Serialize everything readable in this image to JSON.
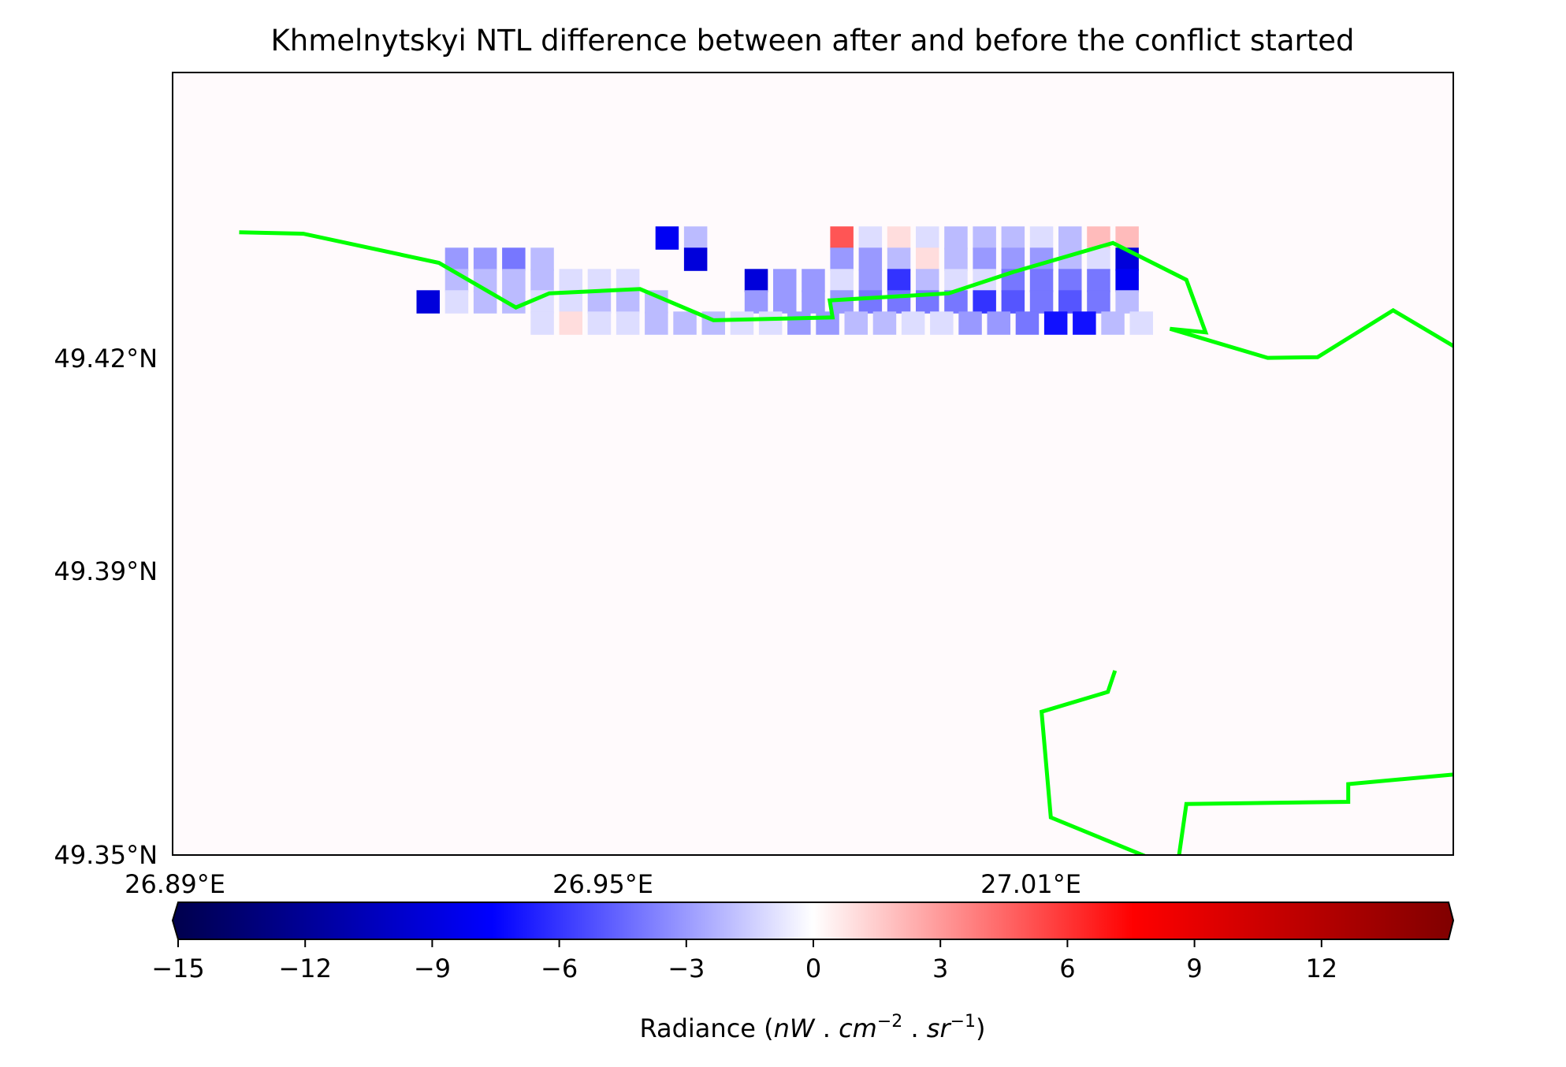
{
  "chart_data": {
    "type": "heatmap",
    "title": "Khmelnytskyi NTL difference between after and before the conflict started",
    "x_extent": [
      26.888,
      26.998
    ],
    "y_extent": [
      49.35,
      49.4385
    ],
    "x_ticks": [
      {
        "value": 26.89,
        "label": "26.89°E"
      },
      {
        "value": 26.95,
        "label": "26.95°E"
      },
      {
        "value": 27.01,
        "label": "27.01°E"
      }
    ],
    "y_ticks": [
      {
        "value": 49.42,
        "label": "49.42°N"
      },
      {
        "value": 49.39,
        "label": "49.39°N"
      },
      {
        "value": 49.35,
        "label": "49.35°N"
      }
    ],
    "grid": false,
    "raster": {
      "note_legend": "row-major, top to bottom, 43 columns x 26 rows",
      "cols": 43,
      "rows": 26,
      "legend": {
        ".": 0,
        "a": -1,
        "b": -2,
        "c": -3,
        "d": -4,
        "e": -5,
        "f": -6,
        "g": -8,
        "h": -10,
        "i": -14,
        "r": 2,
        "s": 4,
        "t": 6,
        "u": 8,
        "v": 10
      },
      "data": [
        "..................................",
        ".....................e.b.........t.rac..a.....",
        "......cbddc............f.........dcbcc.....f",
        "......bdcbbaa.....................bcaadcbacbaabde",
        "......e.bc...b........bbb.........eeddccbbcbdcbbca",
        "........a.rb.aaaa.......cddccceddbcbbbec",
        "...........fbbbcbcab.....e.bcdbbcbdcbbva.ba..",
        "...........fbbbbbbaa.....cdebfffdcf.bb.b....e",
        "...........................feeccce.........fa",
        "...........ffcgcdcbcdffffdeeeeccdcdbbbcabbbbb",
        "...........ddccd.r....cbdadcddbbbbbbbbbbbb..b",
        "........b.cbdccbbaa....dbcccccdddeccbaaab..",
        "..........bebdccbbbcbbccdcddddeeecbbb......",
        "............bcfcccbbbcdefffdeeeggg.ddccc...",
        "..........aarr.bbccbbbbccddddeeeffgggd....",
        ".......rr.abdbbcbbabcdcdcbbcddeeefaaaeab.......",
        ".......aeeadba.........................f.a",
        "..........................................",
        "..........................................",
        ".........................................",
        "..........................................",
        "..........................................",
        "..........................................",
        "..........................................",
        "..........................................",
        ".........................................."
      ]
    },
    "grid_cells": [
      {
        "lon": 26.959,
        "lat": 49.437,
        "v": -8
      },
      {
        "lon": 26.963,
        "lat": 49.437,
        "v": -2
      },
      {
        "lon": 26.963,
        "lat": 49.434,
        "v": -9
      },
      {
        "lon": 26.9835,
        "lat": 49.437,
        "v": 5
      },
      {
        "lon": 26.9875,
        "lat": 49.437,
        "v": -1
      },
      {
        "lon": 26.9915,
        "lat": 49.437,
        "v": 1
      },
      {
        "lon": 26.9955,
        "lat": 49.437,
        "v": -1
      },
      {
        "lon": 26.9995,
        "lat": 49.437,
        "v": -2
      },
      {
        "lon": 27.0035,
        "lat": 49.437,
        "v": -2
      },
      {
        "lon": 27.0075,
        "lat": 49.437,
        "v": -2
      },
      {
        "lon": 27.0115,
        "lat": 49.437,
        "v": -1
      },
      {
        "lon": 27.0155,
        "lat": 49.437,
        "v": -2
      },
      {
        "lon": 27.0195,
        "lat": 49.437,
        "v": 2
      },
      {
        "lon": 27.0235,
        "lat": 49.437,
        "v": 2
      },
      {
        "lon": 26.9295,
        "lat": 49.434,
        "v": -3
      },
      {
        "lon": 26.9335,
        "lat": 49.434,
        "v": -3
      },
      {
        "lon": 26.9375,
        "lat": 49.434,
        "v": -4
      },
      {
        "lon": 26.9415,
        "lat": 49.434,
        "v": -2
      },
      {
        "lon": 26.9835,
        "lat": 49.434,
        "v": -3
      },
      {
        "lon": 26.9875,
        "lat": 49.434,
        "v": -3
      },
      {
        "lon": 26.9915,
        "lat": 49.434,
        "v": -2
      },
      {
        "lon": 26.9955,
        "lat": 49.434,
        "v": 1
      },
      {
        "lon": 26.9995,
        "lat": 49.434,
        "v": -2
      },
      {
        "lon": 27.0035,
        "lat": 49.434,
        "v": -3
      },
      {
        "lon": 27.0075,
        "lat": 49.434,
        "v": -3
      },
      {
        "lon": 27.0115,
        "lat": 49.434,
        "v": -3
      },
      {
        "lon": 27.0155,
        "lat": 49.434,
        "v": -2
      },
      {
        "lon": 27.0195,
        "lat": 49.434,
        "v": -1
      },
      {
        "lon": 27.0235,
        "lat": 49.434,
        "v": -9
      },
      {
        "lon": 26.9295,
        "lat": 49.431,
        "v": -2
      },
      {
        "lon": 26.9335,
        "lat": 49.431,
        "v": -2
      },
      {
        "lon": 26.9375,
        "lat": 49.431,
        "v": -2
      },
      {
        "lon": 26.9415,
        "lat": 49.431,
        "v": -2
      },
      {
        "lon": 26.9455,
        "lat": 49.431,
        "v": -1
      },
      {
        "lon": 26.9495,
        "lat": 49.431,
        "v": -1
      },
      {
        "lon": 26.9535,
        "lat": 49.431,
        "v": -1
      },
      {
        "lon": 26.9715,
        "lat": 49.431,
        "v": -9
      },
      {
        "lon": 26.9755,
        "lat": 49.431,
        "v": -3
      },
      {
        "lon": 26.9795,
        "lat": 49.431,
        "v": -3
      },
      {
        "lon": 26.9835,
        "lat": 49.431,
        "v": -1
      },
      {
        "lon": 26.9875,
        "lat": 49.431,
        "v": -3
      },
      {
        "lon": 26.9915,
        "lat": 49.431,
        "v": -6
      },
      {
        "lon": 26.9955,
        "lat": 49.431,
        "v": -2
      },
      {
        "lon": 26.9995,
        "lat": 49.431,
        "v": -1
      },
      {
        "lon": 27.0035,
        "lat": 49.431,
        "v": -1
      },
      {
        "lon": 27.0075,
        "lat": 49.431,
        "v": -4
      },
      {
        "lon": 27.0115,
        "lat": 49.431,
        "v": -4
      },
      {
        "lon": 27.0155,
        "lat": 49.431,
        "v": -4
      },
      {
        "lon": 27.0195,
        "lat": 49.431,
        "v": -4
      },
      {
        "lon": 27.0235,
        "lat": 49.431,
        "v": -8
      },
      {
        "lon": 26.9255,
        "lat": 49.428,
        "v": -9
      },
      {
        "lon": 26.9295,
        "lat": 49.428,
        "v": -1
      },
      {
        "lon": 26.9335,
        "lat": 49.428,
        "v": -2
      },
      {
        "lon": 26.9375,
        "lat": 49.428,
        "v": -2
      },
      {
        "lon": 26.9415,
        "lat": 49.428,
        "v": -1
      },
      {
        "lon": 26.9455,
        "lat": 49.428,
        "v": -1
      },
      {
        "lon": 26.9495,
        "lat": 49.428,
        "v": -2
      },
      {
        "lon": 26.9535,
        "lat": 49.428,
        "v": -2
      },
      {
        "lon": 26.9575,
        "lat": 49.428,
        "v": -2
      },
      {
        "lon": 26.9715,
        "lat": 49.428,
        "v": -3
      },
      {
        "lon": 26.9755,
        "lat": 49.428,
        "v": -3
      },
      {
        "lon": 26.9795,
        "lat": 49.428,
        "v": -3
      },
      {
        "lon": 26.9835,
        "lat": 49.428,
        "v": -3
      },
      {
        "lon": 26.9875,
        "lat": 49.428,
        "v": -4
      },
      {
        "lon": 26.9915,
        "lat": 49.428,
        "v": -4
      },
      {
        "lon": 26.9955,
        "lat": 49.428,
        "v": -4
      },
      {
        "lon": 26.9995,
        "lat": 49.428,
        "v": -4
      },
      {
        "lon": 27.0035,
        "lat": 49.428,
        "v": -6
      },
      {
        "lon": 27.0075,
        "lat": 49.428,
        "v": -5
      },
      {
        "lon": 27.0115,
        "lat": 49.428,
        "v": -4
      },
      {
        "lon": 27.0155,
        "lat": 49.428,
        "v": -5
      },
      {
        "lon": 27.0195,
        "lat": 49.428,
        "v": -4
      },
      {
        "lon": 27.0235,
        "lat": 49.428,
        "v": -2
      },
      {
        "lon": 26.9415,
        "lat": 49.425,
        "v": -1
      },
      {
        "lon": 26.9455,
        "lat": 49.425,
        "v": 1
      },
      {
        "lon": 26.9495,
        "lat": 49.425,
        "v": -1
      },
      {
        "lon": 26.9535,
        "lat": 49.425,
        "v": -1
      },
      {
        "lon": 26.9575,
        "lat": 49.425,
        "v": -2
      },
      {
        "lon": 26.9615,
        "lat": 49.425,
        "v": -2
      },
      {
        "lon": 26.9655,
        "lat": 49.425,
        "v": -2
      },
      {
        "lon": 26.9695,
        "lat": 49.425,
        "v": -1
      },
      {
        "lon": 26.9735,
        "lat": 49.425,
        "v": -1
      },
      {
        "lon": 26.9775,
        "lat": 49.425,
        "v": -3
      },
      {
        "lon": 26.9815,
        "lat": 49.425,
        "v": -3
      },
      {
        "lon": 26.9855,
        "lat": 49.425,
        "v": -2
      },
      {
        "lon": 26.9895,
        "lat": 49.425,
        "v": -2
      },
      {
        "lon": 26.9935,
        "lat": 49.425,
        "v": -1
      },
      {
        "lon": 26.9975,
        "lat": 49.425,
        "v": -1
      },
      {
        "lon": 27.0015,
        "lat": 49.425,
        "v": -3
      },
      {
        "lon": 27.0055,
        "lat": 49.425,
        "v": -3
      },
      {
        "lon": 27.0095,
        "lat": 49.425,
        "v": -4
      },
      {
        "lon": 27.0135,
        "lat": 49.425,
        "v": -7
      },
      {
        "lon": 27.0175,
        "lat": 49.425,
        "v": -7
      },
      {
        "lon": 27.0215,
        "lat": 49.425,
        "v": -2
      },
      {
        "lon": 27.0255,
        "lat": 49.425,
        "v": -1
      }
    ],
    "boundary": [
      [
        26.899,
        49.4378
      ],
      [
        26.908,
        49.4376
      ],
      [
        26.927,
        49.4335
      ],
      [
        26.9378,
        49.4272
      ],
      [
        26.9425,
        49.4292
      ],
      [
        26.9552,
        49.4298
      ],
      [
        26.9655,
        49.4254
      ],
      [
        26.9822,
        49.4258
      ],
      [
        26.9818,
        49.4282
      ],
      [
        26.9985,
        49.4292
      ],
      [
        27.0075,
        49.4322
      ],
      [
        27.0215,
        49.4363
      ],
      [
        27.0318,
        49.4311
      ],
      [
        27.0345,
        49.4237
      ],
      [
        27.0295,
        49.4242
      ],
      [
        27.0432,
        49.4201
      ],
      [
        27.0502,
        49.4202
      ],
      [
        27.0608,
        49.4268
      ],
      [
        27.0702,
        49.4212
      ],
      [
        27.0715,
        49.4125
      ],
      [
        27.0735,
        49.4075
      ],
      [
        27.0782,
        49.3978
      ],
      [
        27.0782,
        49.4064
      ],
      [
        27.0818,
        49.4043
      ],
      [
        27.0818,
        49.3928
      ],
      [
        27.0875,
        49.3897
      ],
      [
        27.0905,
        49.3812
      ],
      [
        27.0945,
        49.3765
      ],
      [
        27.0945,
        49.3745
      ],
      [
        27.0885,
        49.37
      ],
      [
        27.0832,
        49.3681
      ],
      [
        27.0742,
        49.3618
      ],
      [
        27.0545,
        49.36
      ],
      [
        27.0545,
        49.3575
      ],
      [
        27.0318,
        49.3572
      ],
      [
        27.0305,
        49.348
      ],
      [
        27.0128,
        49.3553
      ],
      [
        27.0115,
        49.3702
      ],
      [
        27.0208,
        49.373
      ],
      [
        27.0218,
        49.376
      ]
    ]
  },
  "colorbar": {
    "ticks": [
      {
        "value": -15,
        "label": "−15"
      },
      {
        "value": -12,
        "label": "−12"
      },
      {
        "value": -9,
        "label": "−9"
      },
      {
        "value": -6,
        "label": "−6"
      },
      {
        "value": -3,
        "label": "−3"
      },
      {
        "value": 0,
        "label": "0"
      },
      {
        "value": 3,
        "label": "3"
      },
      {
        "value": 6,
        "label": "6"
      },
      {
        "value": 9,
        "label": "9"
      },
      {
        "value": 12,
        "label": "12"
      }
    ],
    "range": [
      -15,
      15
    ],
    "colormap": "seismic",
    "colors": {
      "dark_blue": "#00004c",
      "blue": "#0000ff",
      "white": "#ffffff",
      "red": "#ff0000",
      "dark_red": "#800000"
    },
    "label_text": "Radiance (",
    "label_parts": {
      "nw": "nW",
      "sep1": " . ",
      "cm": "cm",
      "cm_exp": "−2",
      "sep2": " . ",
      "sr": "sr",
      "sr_exp": "−1",
      "close": ")"
    }
  },
  "colors": {
    "boundary": "#00ff00",
    "background": "#fffafc",
    "frame": "#000000"
  }
}
